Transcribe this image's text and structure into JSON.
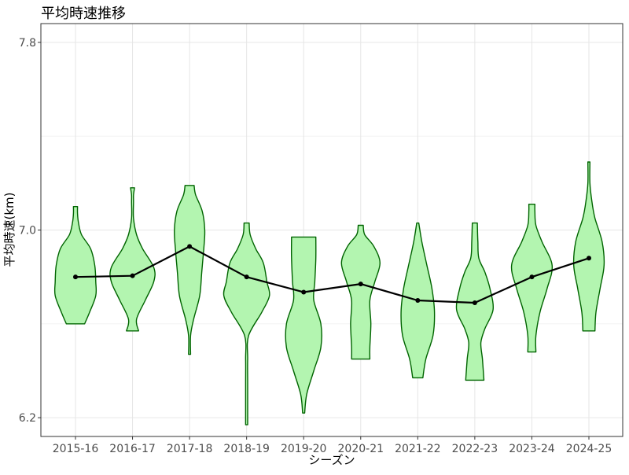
{
  "chart_data": {
    "type": "violin",
    "title": "平均時速推移",
    "xlabel": "シーズン",
    "ylabel": "平均時速(km)",
    "ylim": [
      6.12,
      7.88
    ],
    "yticks": [
      6.2,
      7.0,
      7.8
    ],
    "ytick_labels": [
      "6.2",
      "7.0",
      "7.8"
    ],
    "grid": true,
    "categories": [
      "2015-16",
      "2016-17",
      "2017-18",
      "2018-19",
      "2019-20",
      "2020-21",
      "2021-22",
      "2022-23",
      "2023-24",
      "2024-25"
    ],
    "line_values": [
      6.8,
      6.805,
      6.93,
      6.8,
      6.735,
      6.77,
      6.7,
      6.69,
      6.8,
      6.88
    ],
    "colors": {
      "violin_fill": "#b3f5b0",
      "violin_stroke": "#006400",
      "line": "#000000"
    },
    "violins": [
      {
        "min": 6.6,
        "max": 7.1,
        "profile": [
          [
            6.6,
            0.18
          ],
          [
            6.65,
            0.28
          ],
          [
            6.72,
            0.4
          ],
          [
            6.78,
            0.4
          ],
          [
            6.85,
            0.38
          ],
          [
            6.92,
            0.3
          ],
          [
            6.98,
            0.12
          ],
          [
            7.03,
            0.06
          ],
          [
            7.07,
            0.04
          ],
          [
            7.1,
            0.04
          ]
        ]
      },
      {
        "min": 6.57,
        "max": 7.18,
        "profile": [
          [
            6.57,
            0.12
          ],
          [
            6.62,
            0.08
          ],
          [
            6.7,
            0.25
          ],
          [
            6.78,
            0.42
          ],
          [
            6.84,
            0.42
          ],
          [
            6.92,
            0.2
          ],
          [
            6.98,
            0.08
          ],
          [
            7.05,
            0.02
          ],
          [
            7.12,
            0.02
          ],
          [
            7.15,
            0.02
          ],
          [
            7.18,
            0.04
          ]
        ]
      },
      {
        "min": 6.47,
        "max": 7.19,
        "profile": [
          [
            6.47,
            0.02
          ],
          [
            6.55,
            0.02
          ],
          [
            6.62,
            0.08
          ],
          [
            6.72,
            0.2
          ],
          [
            6.82,
            0.24
          ],
          [
            6.92,
            0.28
          ],
          [
            7.0,
            0.3
          ],
          [
            7.08,
            0.25
          ],
          [
            7.15,
            0.12
          ],
          [
            7.19,
            0.09
          ]
        ]
      },
      {
        "min": 6.17,
        "max": 7.03,
        "profile": [
          [
            6.17,
            0.02
          ],
          [
            6.25,
            0.02
          ],
          [
            6.35,
            0.02
          ],
          [
            6.45,
            0.02
          ],
          [
            6.55,
            0.04
          ],
          [
            6.65,
            0.3
          ],
          [
            6.72,
            0.45
          ],
          [
            6.78,
            0.4
          ],
          [
            6.86,
            0.33
          ],
          [
            6.92,
            0.18
          ],
          [
            6.98,
            0.07
          ],
          [
            7.03,
            0.05
          ]
        ]
      },
      {
        "min": 6.22,
        "max": 6.97,
        "profile": [
          [
            6.22,
            0.02
          ],
          [
            6.3,
            0.06
          ],
          [
            6.4,
            0.2
          ],
          [
            6.5,
            0.34
          ],
          [
            6.6,
            0.34
          ],
          [
            6.7,
            0.2
          ],
          [
            6.78,
            0.22
          ],
          [
            6.88,
            0.24
          ],
          [
            6.97,
            0.24
          ]
        ]
      },
      {
        "min": 6.45,
        "max": 7.02,
        "profile": [
          [
            6.45,
            0.18
          ],
          [
            6.5,
            0.18
          ],
          [
            6.6,
            0.2
          ],
          [
            6.7,
            0.18
          ],
          [
            6.78,
            0.28
          ],
          [
            6.86,
            0.38
          ],
          [
            6.93,
            0.26
          ],
          [
            6.98,
            0.08
          ],
          [
            7.02,
            0.05
          ]
        ]
      },
      {
        "min": 6.37,
        "max": 7.03,
        "profile": [
          [
            6.37,
            0.1
          ],
          [
            6.45,
            0.16
          ],
          [
            6.55,
            0.3
          ],
          [
            6.65,
            0.33
          ],
          [
            6.75,
            0.28
          ],
          [
            6.85,
            0.18
          ],
          [
            6.95,
            0.08
          ],
          [
            7.03,
            0.02
          ]
        ]
      },
      {
        "min": 6.36,
        "max": 7.03,
        "profile": [
          [
            6.36,
            0.18
          ],
          [
            6.45,
            0.15
          ],
          [
            6.52,
            0.12
          ],
          [
            6.58,
            0.2
          ],
          [
            6.66,
            0.36
          ],
          [
            6.75,
            0.3
          ],
          [
            6.82,
            0.2
          ],
          [
            6.88,
            0.08
          ],
          [
            6.95,
            0.06
          ],
          [
            7.03,
            0.05
          ]
        ]
      },
      {
        "min": 6.48,
        "max": 7.11,
        "profile": [
          [
            6.48,
            0.08
          ],
          [
            6.55,
            0.08
          ],
          [
            6.65,
            0.16
          ],
          [
            6.75,
            0.3
          ],
          [
            6.85,
            0.4
          ],
          [
            6.95,
            0.2
          ],
          [
            7.02,
            0.08
          ],
          [
            7.08,
            0.06
          ],
          [
            7.11,
            0.06
          ]
        ]
      },
      {
        "min": 6.57,
        "max": 7.29,
        "profile": [
          [
            6.57,
            0.12
          ],
          [
            6.65,
            0.14
          ],
          [
            6.75,
            0.22
          ],
          [
            6.85,
            0.3
          ],
          [
            6.95,
            0.26
          ],
          [
            7.05,
            0.12
          ],
          [
            7.12,
            0.06
          ],
          [
            7.2,
            0.02
          ],
          [
            7.29,
            0.02
          ]
        ]
      }
    ]
  }
}
